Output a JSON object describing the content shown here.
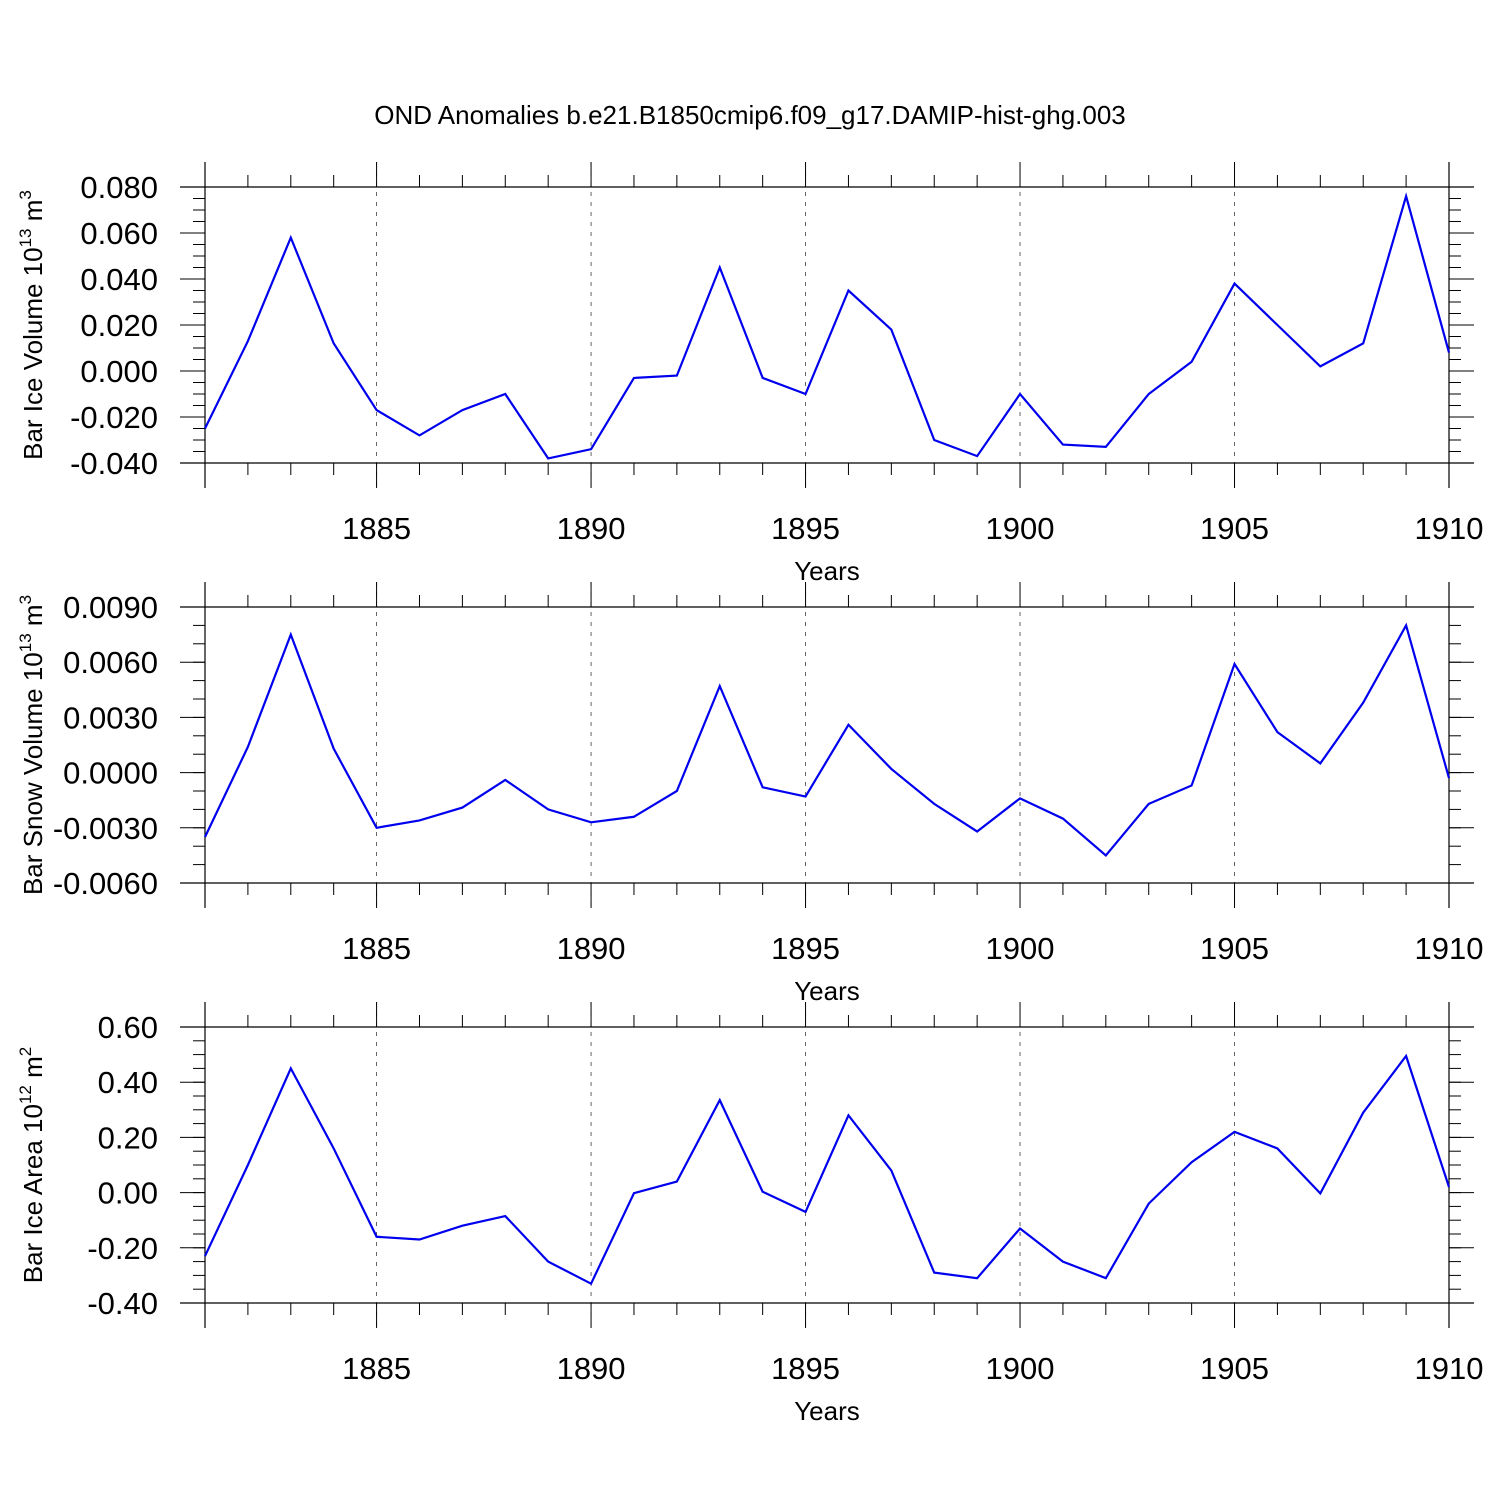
{
  "title": "OND Anomalies b.e21.B1850cmip6.f09_g17.DAMIP-hist-ghg.003",
  "colors": {
    "line": "#0000ee",
    "axes": "#000000",
    "background": "#ffffff"
  },
  "chart_data": [
    {
      "type": "line",
      "ylabel_main": "Bar Ice Volume 10",
      "ylabel_exp1": "13",
      "ylabel_unit": " m",
      "ylabel_exp2": "3",
      "xlabel": "Years",
      "xlim": [
        1881,
        1910
      ],
      "ylim": [
        -0.04,
        0.08
      ],
      "y_ticks": [
        -0.04,
        -0.02,
        0.0,
        0.02,
        0.04,
        0.06,
        0.08
      ],
      "y_tick_labels": [
        "-0.040",
        "-0.020",
        "0.000",
        "0.020",
        "0.040",
        "0.060",
        "0.080"
      ],
      "y_minor_step": 0.005,
      "x_ticks": [
        1885,
        1890,
        1895,
        1900,
        1905,
        1910
      ],
      "x_tick_labels": [
        "1885",
        "1890",
        "1895",
        "1900",
        "1905",
        "1910"
      ],
      "x_grid": [
        1885,
        1890,
        1895,
        1900,
        1905
      ],
      "series": [
        {
          "name": "Bar Ice Volume",
          "x": [
            1881,
            1882,
            1883,
            1884,
            1885,
            1886,
            1887,
            1888,
            1889,
            1890,
            1891,
            1892,
            1893,
            1894,
            1895,
            1896,
            1897,
            1898,
            1899,
            1900,
            1901,
            1902,
            1903,
            1904,
            1905,
            1906,
            1907,
            1908,
            1909,
            1910
          ],
          "values": [
            -0.025,
            0.013,
            0.058,
            0.012,
            -0.017,
            -0.028,
            -0.017,
            -0.01,
            -0.038,
            -0.034,
            -0.003,
            -0.002,
            0.045,
            -0.003,
            -0.01,
            0.035,
            0.018,
            -0.03,
            -0.037,
            -0.01,
            -0.032,
            -0.033,
            -0.01,
            0.004,
            0.038,
            0.02,
            0.002,
            0.012,
            0.076,
            0.008
          ]
        }
      ]
    },
    {
      "type": "line",
      "ylabel_main": "Bar Snow Volume 10",
      "ylabel_exp1": "13",
      "ylabel_unit": " m",
      "ylabel_exp2": "3",
      "xlabel": "Years",
      "xlim": [
        1881,
        1910
      ],
      "ylim": [
        -0.006,
        0.009
      ],
      "y_ticks": [
        -0.006,
        -0.003,
        0.0,
        0.003,
        0.006,
        0.009
      ],
      "y_tick_labels": [
        "-0.0060",
        "-0.0030",
        "0.0000",
        "0.0030",
        "0.0060",
        "0.0090"
      ],
      "y_minor_step": 0.001,
      "x_ticks": [
        1885,
        1890,
        1895,
        1900,
        1905,
        1910
      ],
      "x_tick_labels": [
        "1885",
        "1890",
        "1895",
        "1900",
        "1905",
        "1910"
      ],
      "x_grid": [
        1885,
        1890,
        1895,
        1900,
        1905
      ],
      "series": [
        {
          "name": "Bar Snow Volume",
          "x": [
            1881,
            1882,
            1883,
            1884,
            1885,
            1886,
            1887,
            1888,
            1889,
            1890,
            1891,
            1892,
            1893,
            1894,
            1895,
            1896,
            1897,
            1898,
            1899,
            1900,
            1901,
            1902,
            1903,
            1904,
            1905,
            1906,
            1907,
            1908,
            1909,
            1910
          ],
          "values": [
            -0.0035,
            0.0014,
            0.0075,
            0.0013,
            -0.003,
            -0.0026,
            -0.0019,
            -0.0004,
            -0.002,
            -0.0027,
            -0.0024,
            -0.001,
            0.0047,
            -0.0008,
            -0.0013,
            0.0026,
            0.0002,
            -0.0017,
            -0.0032,
            -0.0014,
            -0.0025,
            -0.0045,
            -0.0017,
            -0.0007,
            0.0059,
            0.0022,
            0.0005,
            0.0038,
            0.008,
            -0.0003
          ]
        }
      ]
    },
    {
      "type": "line",
      "ylabel_main": "Bar Ice Area 10",
      "ylabel_exp1": "12",
      "ylabel_unit": " m",
      "ylabel_exp2": "2",
      "xlabel": "Years",
      "xlim": [
        1881,
        1910
      ],
      "ylim": [
        -0.4,
        0.6
      ],
      "y_ticks": [
        -0.4,
        -0.2,
        0.0,
        0.2,
        0.4,
        0.6
      ],
      "y_tick_labels": [
        "-0.40",
        "-0.20",
        "0.00",
        "0.20",
        "0.40",
        "0.60"
      ],
      "y_minor_step": 0.05,
      "x_ticks": [
        1885,
        1890,
        1895,
        1900,
        1905,
        1910
      ],
      "x_tick_labels": [
        "1885",
        "1890",
        "1895",
        "1900",
        "1905",
        "1910"
      ],
      "x_grid": [
        1885,
        1890,
        1895,
        1900,
        1905
      ],
      "series": [
        {
          "name": "Bar Ice Area",
          "x": [
            1881,
            1882,
            1883,
            1884,
            1885,
            1886,
            1887,
            1888,
            1889,
            1890,
            1891,
            1892,
            1893,
            1894,
            1895,
            1896,
            1897,
            1898,
            1899,
            1900,
            1901,
            1902,
            1903,
            1904,
            1905,
            1906,
            1907,
            1908,
            1909,
            1910
          ],
          "values": [
            -0.23,
            0.1,
            0.45,
            0.16,
            -0.16,
            -0.17,
            -0.12,
            -0.085,
            -0.25,
            -0.33,
            -0.002,
            0.04,
            0.335,
            0.003,
            -0.07,
            0.28,
            0.08,
            -0.29,
            -0.31,
            -0.13,
            -0.25,
            -0.31,
            -0.04,
            0.11,
            0.22,
            0.16,
            -0.003,
            0.29,
            0.495,
            0.02
          ]
        }
      ]
    }
  ]
}
